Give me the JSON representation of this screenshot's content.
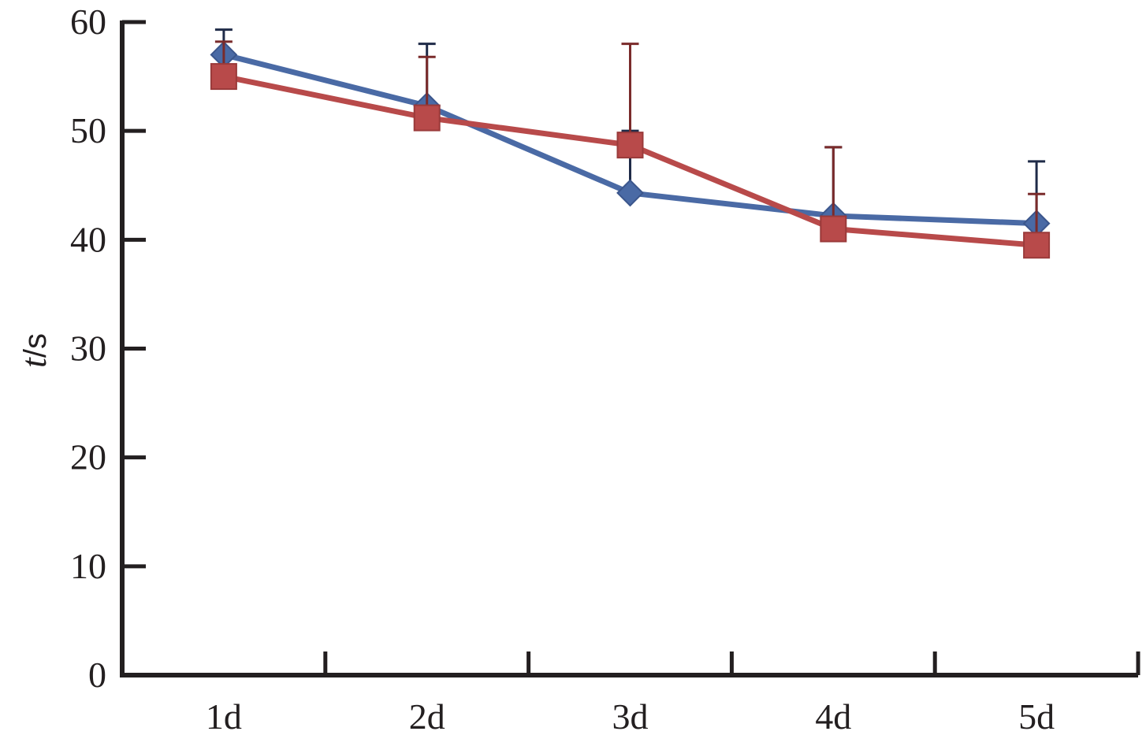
{
  "chart_data": {
    "type": "line",
    "categories": [
      "1d",
      "2d",
      "3d",
      "4d",
      "5d"
    ],
    "ylabel": {
      "var": "t",
      "unit": "/s"
    },
    "ylim": [
      0,
      60
    ],
    "yticks": [
      "0",
      "10",
      "20",
      "30",
      "40",
      "50",
      "60"
    ],
    "grid": false,
    "legend": "none",
    "series": [
      {
        "color": "#4a6aa5",
        "marker": "diamond",
        "values": [
          57.0,
          52.3,
          44.3,
          42.2,
          41.5
        ],
        "error_upper": [
          59.3,
          58.0,
          50.0,
          48.5,
          47.2
        ]
      },
      {
        "color": "#b84a4a",
        "marker": "square",
        "values": [
          55.0,
          51.2,
          48.7,
          41.0,
          39.5
        ],
        "error_upper": [
          58.2,
          56.8,
          58.0,
          48.5,
          44.2
        ]
      }
    ]
  }
}
